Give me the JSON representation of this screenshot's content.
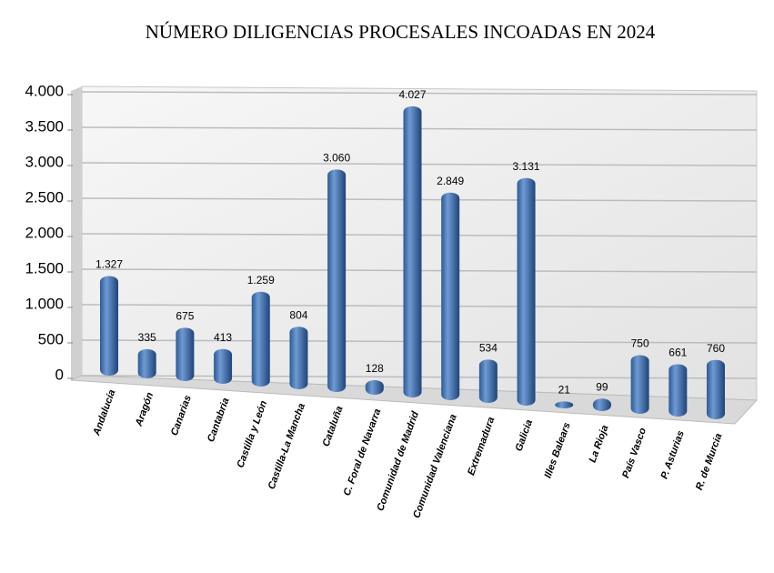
{
  "chart_data": {
    "type": "bar",
    "title": "NÚMERO DILIGENCIAS PROCESALES INCOADAS EN 2024",
    "categories": [
      "Andalucía",
      "Aragón",
      "Canarias",
      "Cantabria",
      "Castilla y León",
      "Castilla-La Mancha",
      "Cataluña",
      "C. Foral de Navarra",
      "Comunidad de Madrid",
      "Comunidad Valenciana",
      "Extremadura",
      "Galicia",
      "Illes Balears",
      "La Rioja",
      "País Vasco",
      "P. Asturias",
      "R. de Murcia"
    ],
    "values": [
      1327,
      335,
      675,
      413,
      1259,
      804,
      3060,
      128,
      4027,
      2849,
      534,
      3131,
      21,
      99,
      750,
      661,
      760
    ],
    "value_labels": [
      "1.327",
      "335",
      "675",
      "413",
      "1.259",
      "804",
      "3.060",
      "128",
      "4.027",
      "2.849",
      "534",
      "3.131",
      "21",
      "99",
      "750",
      "661",
      "760"
    ],
    "color": "#4f81bd",
    "ylim": [
      0,
      4000
    ],
    "yticks": [
      0,
      500,
      {
        "value": 1000,
        "label": "1.000"
      },
      {
        "value": 1500,
        "label": "1.500"
      },
      {
        "value": 2000,
        "label": "2.000"
      },
      {
        "value": 2500,
        "label": "2.500"
      },
      {
        "value": 3000,
        "label": "3.000"
      },
      {
        "value": 3500,
        "label": "3.500"
      },
      {
        "value": 4000,
        "label": "4.000"
      }
    ],
    "grid": true
  }
}
